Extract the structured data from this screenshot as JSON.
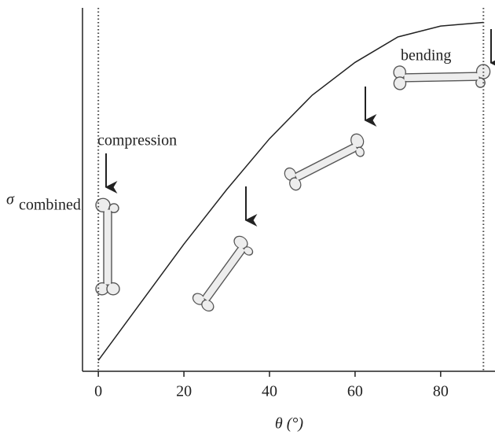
{
  "chart_data": {
    "type": "line",
    "xlabel": "θ (°)",
    "ylabel": "σ",
    "ylabel_sub": "combined",
    "x": [
      0,
      10,
      20,
      30,
      40,
      50,
      60,
      70,
      80,
      90
    ],
    "series": [
      {
        "color": "#222222",
        "values": [
          0.03,
          0.19,
          0.35,
          0.5,
          0.64,
          0.76,
          0.85,
          0.92,
          0.95,
          0.96
        ]
      }
    ],
    "xlim": [
      -3.7,
      92.7
    ],
    "ylim": [
      0,
      1
    ],
    "xticks": [
      0,
      20,
      40,
      60,
      80
    ],
    "vlines": [
      0,
      90
    ],
    "annotations": [
      "compression",
      "bending"
    ]
  }
}
